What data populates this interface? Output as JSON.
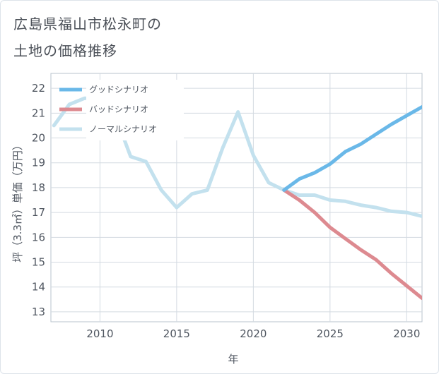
{
  "title_lines": [
    "広島県福山市松永町の",
    "土地の価格推移"
  ],
  "chart_data": {
    "type": "line",
    "title": "広島県福山市松永町の土地の価格推移",
    "xlabel": "年",
    "ylabel": "坪（3.3㎡）単価（万円）",
    "xlim": [
      2006.8,
      2031
    ],
    "ylim": [
      12.6,
      22.6
    ],
    "xticks": [
      2010,
      2015,
      2020,
      2025,
      2030
    ],
    "yticks": [
      13,
      14,
      15,
      16,
      17,
      18,
      19,
      20,
      21,
      22
    ],
    "legend_position": "top-left",
    "series": [
      {
        "name": "グッドシナリオ",
        "color": "#6ab8e8",
        "x": [
          2022,
          2023,
          2024,
          2025,
          2026,
          2027,
          2028,
          2029,
          2030,
          2031
        ],
        "y": [
          17.9,
          18.35,
          18.6,
          18.95,
          19.45,
          19.75,
          20.15,
          20.55,
          20.9,
          21.25
        ]
      },
      {
        "name": "バッドシナリオ",
        "color": "#dd8a90",
        "x": [
          2022,
          2023,
          2024,
          2025,
          2026,
          2027,
          2028,
          2029,
          2030,
          2031
        ],
        "y": [
          17.9,
          17.5,
          17.0,
          16.4,
          15.95,
          15.5,
          15.1,
          14.55,
          14.05,
          13.55
        ]
      },
      {
        "name": "ノーマルシナリオ",
        "color": "#c3e1ee",
        "x": [
          2007,
          2008,
          2009,
          2010,
          2011,
          2012,
          2013,
          2014,
          2015,
          2016,
          2017,
          2018,
          2019,
          2020,
          2021,
          2022,
          2023,
          2024,
          2025,
          2026,
          2027,
          2028,
          2029,
          2030,
          2031
        ],
        "y": [
          20.5,
          21.35,
          21.6,
          21.6,
          20.9,
          19.25,
          19.05,
          17.9,
          17.2,
          17.75,
          17.9,
          19.6,
          21.05,
          19.3,
          18.2,
          17.9,
          17.7,
          17.7,
          17.5,
          17.45,
          17.3,
          17.2,
          17.05,
          17.0,
          16.85
        ]
      }
    ]
  }
}
